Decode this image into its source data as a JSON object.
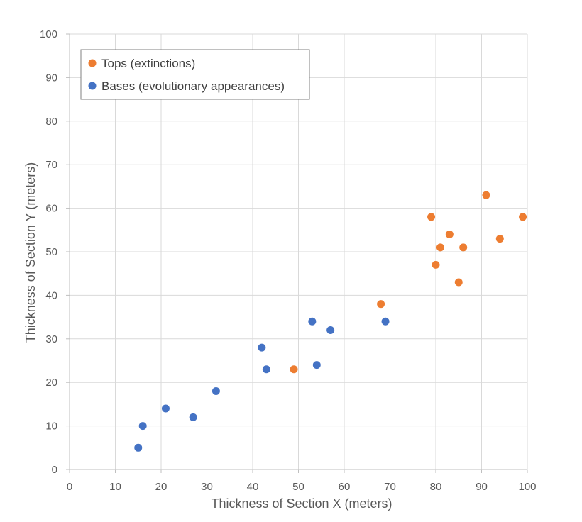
{
  "chart_data": {
    "type": "scatter",
    "title": "",
    "xlabel": "Thickness of Section X (meters)",
    "ylabel": "Thickness of Section Y (meters)",
    "xlim": [
      0,
      100
    ],
    "ylim": [
      0,
      100
    ],
    "x_ticks": [
      0,
      10,
      20,
      30,
      40,
      50,
      60,
      70,
      80,
      90,
      100
    ],
    "y_ticks": [
      0,
      10,
      20,
      30,
      40,
      50,
      60,
      70,
      80,
      90,
      100
    ],
    "grid": true,
    "legend_position": "top-left",
    "series": [
      {
        "name": "Tops (extinctions)",
        "color": "#ED7D31",
        "points": [
          [
            49,
            23
          ],
          [
            68,
            38
          ],
          [
            79,
            58
          ],
          [
            80,
            47
          ],
          [
            81,
            51
          ],
          [
            83,
            54
          ],
          [
            85,
            43
          ],
          [
            86,
            51
          ],
          [
            91,
            63
          ],
          [
            94,
            53
          ],
          [
            99,
            58
          ]
        ]
      },
      {
        "name": "Bases (evolutionary appearances)",
        "color": "#4472C4",
        "points": [
          [
            15,
            5
          ],
          [
            16,
            10
          ],
          [
            21,
            14
          ],
          [
            27,
            12
          ],
          [
            32,
            18
          ],
          [
            42,
            28
          ],
          [
            43,
            23
          ],
          [
            53,
            34
          ],
          [
            54,
            24
          ],
          [
            57,
            32
          ],
          [
            69,
            34
          ]
        ]
      }
    ]
  }
}
